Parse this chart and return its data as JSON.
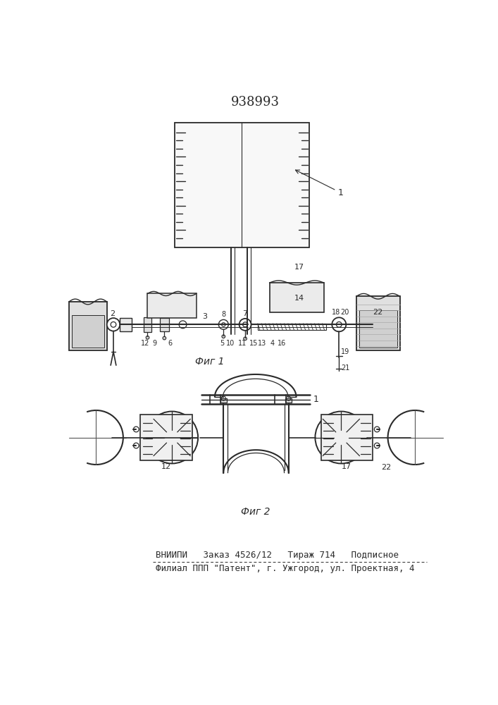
{
  "title": "938993",
  "fig1_label": "Фиг 1",
  "fig2_label": "Фиг 2",
  "footer_line1": "ВНИИПИ   Заказ 4526/12   Тираж 714   Подписное",
  "footer_line2": "Филиал ППП \"Патент\", г. Ужгород, ул. Проектная, 4",
  "bg_color": "#ffffff",
  "line_color": "#2a2a2a"
}
